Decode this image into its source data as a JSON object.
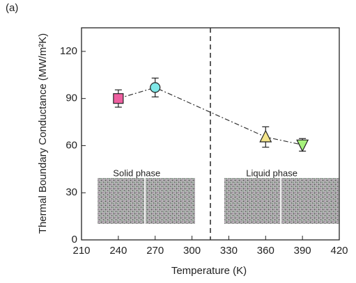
{
  "chart_data": {
    "type": "scatter",
    "panel_label": "(a)",
    "x_label": "Temperature (K)",
    "y_label": "Thermal Boundary Conductance (MW/m²K)",
    "x": [
      240,
      270,
      360,
      390
    ],
    "values": [
      90,
      97,
      65.5,
      60.5
    ],
    "errors": [
      5.5,
      6,
      6.5,
      4
    ],
    "colors": [
      "#ee5fa0",
      "#7fe8e8",
      "#f3e48a",
      "#a6f27c"
    ],
    "markers": [
      "square",
      "circle",
      "triangle-up",
      "triangle-down"
    ],
    "line_style": "dash-dot",
    "divider_x": 315,
    "annotations": [
      {
        "text": "Solid phase",
        "x": 255,
        "y": 42
      },
      {
        "text": "Liquid phase",
        "x": 365,
        "y": 42
      }
    ],
    "xlim": [
      210,
      420
    ],
    "xticks": [
      210,
      240,
      270,
      300,
      330,
      360,
      390,
      420
    ],
    "ylim": [
      0,
      135
    ],
    "yticks": [
      0,
      30,
      60,
      90,
      120
    ]
  }
}
